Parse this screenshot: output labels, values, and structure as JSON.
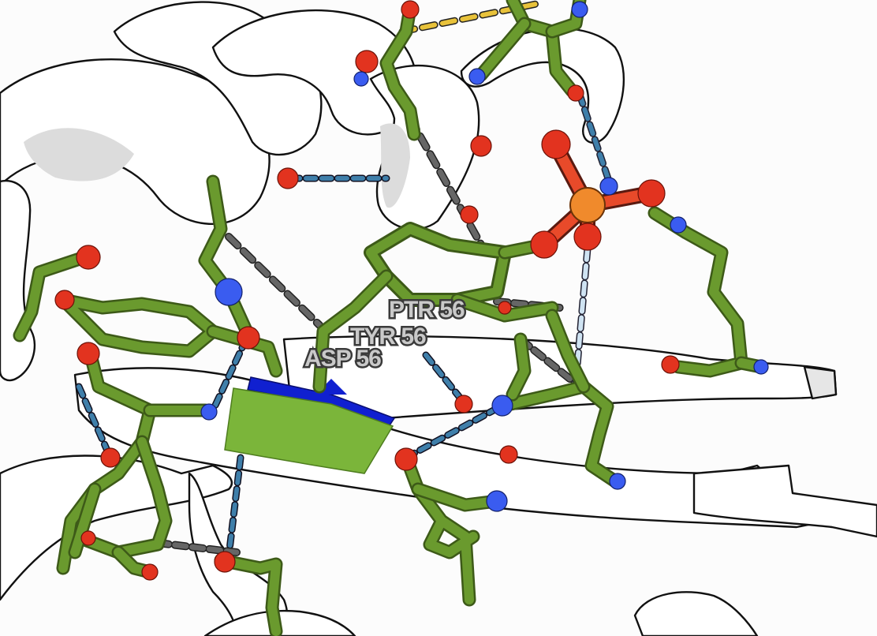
{
  "residue_labels": [
    {
      "id": "ptr",
      "text": "PTR 56"
    },
    {
      "id": "tyr",
      "text": "TYR 56"
    },
    {
      "id": "asp",
      "text": "ASP 56"
    }
  ],
  "colors": {
    "background": "#fcfcfc",
    "ribbon": "#ffffff",
    "carbon": "#6a9a2e",
    "oxygen": "#e2331f",
    "nitrogen": "#3a5cf0",
    "phosphorus": "#f08a2c",
    "highlight_strand": "#7bb53a",
    "highlight_strand_edge": "#1020d0",
    "hbond_blue": "#3f7faa",
    "hbond_gray": "#555555",
    "hbond_yellow": "#e8c23a"
  }
}
